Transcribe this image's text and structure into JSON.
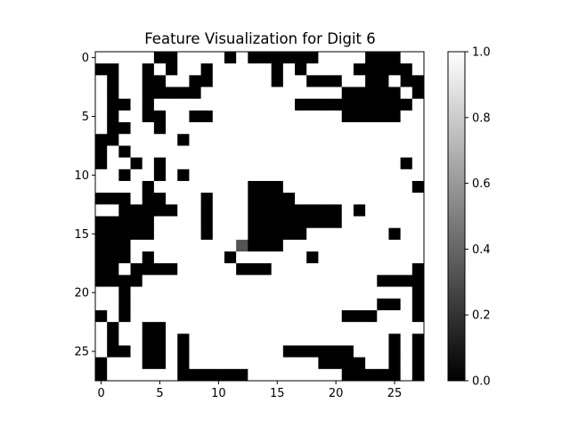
{
  "chart_data": {
    "type": "heatmap",
    "title": "Feature Visualization for Digit 6",
    "xlabel": "",
    "ylabel": "",
    "colormap": "gray",
    "vmin": 0.0,
    "vmax": 1.0,
    "x_ticks": [
      0,
      5,
      10,
      15,
      20,
      25
    ],
    "y_ticks": [
      0,
      5,
      10,
      15,
      20,
      25
    ],
    "colorbar_ticks": [
      0.0,
      0.2,
      0.4,
      0.6,
      0.8,
      1.0
    ],
    "colorbar_tick_labels": [
      "0.0",
      "0.2",
      "0.4",
      "0.6",
      "0.8",
      "1.0"
    ],
    "x_tick_labels": [
      "0",
      "5",
      "10",
      "15",
      "20",
      "25"
    ],
    "y_tick_labels": [
      "0",
      "5",
      "10",
      "15",
      "20",
      "25"
    ],
    "rows": [
      "1111100111101000000111100011",
      "0011010110111110101111000001",
      "1011001100111110110001100100",
      "1011000001111111111110000010",
      "1001011111111111100000000001",
      "1011001100111111111110000011",
      "1001101111111111111111111111",
      "0011111011111111111111111111",
      "0101111111111111111111111111",
      "0110101111111111111111111101",
      "1101101011111111111111111111",
      "1111011111111000111111111110",
      "0001001110111000011111111111",
      "1100000110111000000001011111",
      "0000011110111000000001111111",
      "0000011110111000001111111011",
      "0001111111111000111111111111",
      "0001011111101111110111111111",
      "0010000111110001111111111110",
      "0000111111111111111111110000",
      "1101111111111111111111111110",
      "1101111111111111111111110010",
      "0101111111111111111110001110",
      "1011001111111111111111111111",
      "1011001011111111111111111010",
      "1001001011111111000000111010",
      "0111001011111111111000011010",
      "0111111000000111111110000010"
    ],
    "special_cells": [
      {
        "row": 16,
        "col": 12,
        "value": 0.33
      }
    ]
  }
}
